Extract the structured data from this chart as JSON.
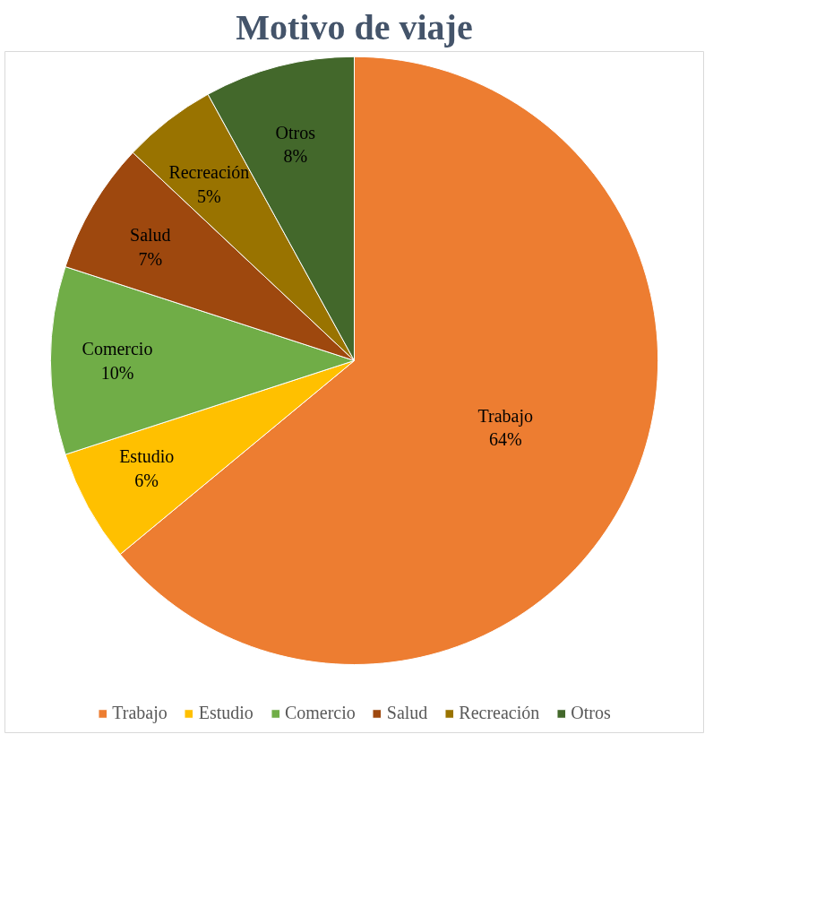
{
  "chart_data": {
    "type": "pie",
    "title": "Motivo de viaje",
    "categories": [
      "Trabajo",
      "Estudio",
      "Comercio",
      "Salud",
      "Recreación",
      "Otros"
    ],
    "values": [
      64,
      6,
      10,
      7,
      5,
      8
    ],
    "value_labels": [
      "64%",
      "6%",
      "10%",
      "7%",
      "5%",
      "8%"
    ],
    "colors": [
      "#ed7d31",
      "#ffc000",
      "#70ad47",
      "#9e480e",
      "#997300",
      "#43682b"
    ],
    "legend": "bottom"
  }
}
